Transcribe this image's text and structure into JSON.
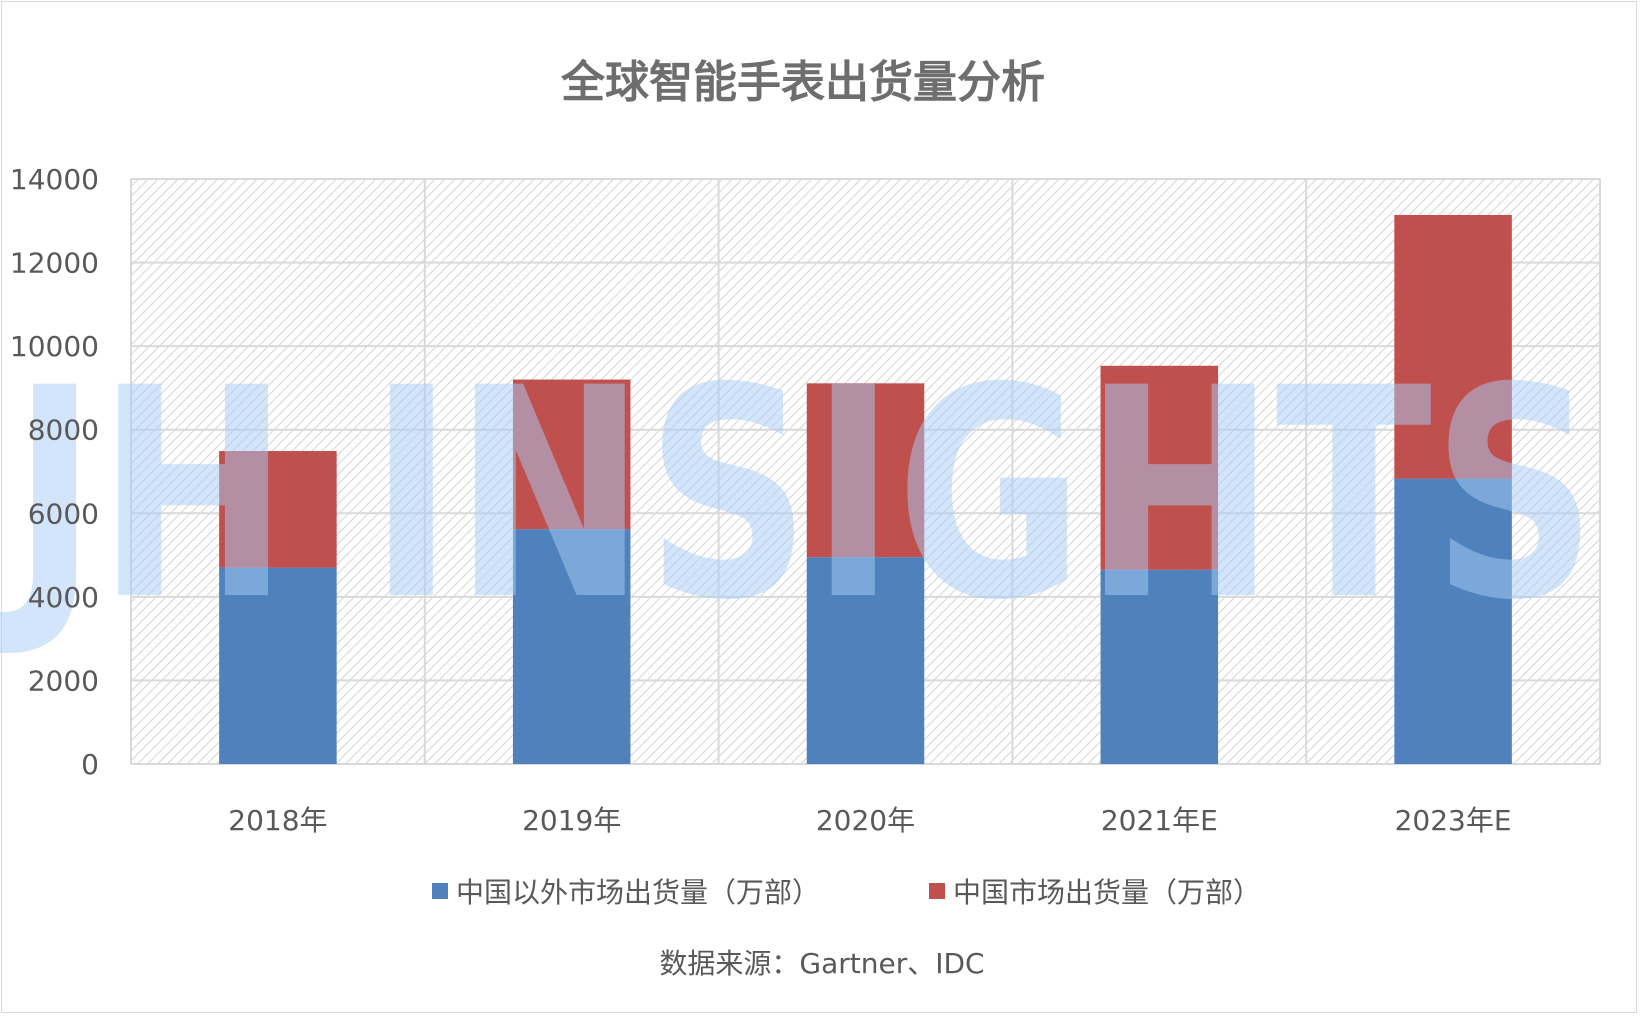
{
  "chart_data": {
    "type": "bar",
    "stacked": true,
    "title": "全球智能手表出货量分析",
    "categories": [
      "2018年",
      "2019年",
      "2020年",
      "2021年E",
      "2023年E"
    ],
    "series": [
      {
        "name": "中国以外市场出货量（万部）",
        "color": "#4f81bd",
        "values": [
          4700,
          5620,
          4950,
          4650,
          6830
        ]
      },
      {
        "name": "中国市场出货量（万部）",
        "color": "#c0504d",
        "values": [
          2790,
          3580,
          4160,
          4880,
          6310
        ]
      }
    ],
    "ylim": [
      0,
      14000
    ],
    "yticks": [
      0,
      2000,
      4000,
      6000,
      8000,
      10000,
      12000,
      14000
    ],
    "grid": true,
    "legend_position": "bottom",
    "source": "数据来源：Gartner、IDC"
  },
  "watermark": "JH INSIGHTS"
}
